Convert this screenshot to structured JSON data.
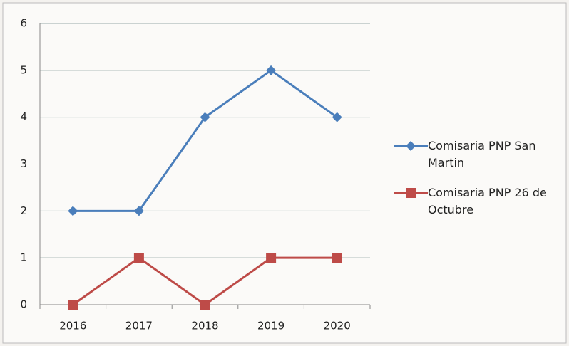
{
  "chart_data": {
    "type": "line",
    "categories": [
      "2016",
      "2017",
      "2018",
      "2019",
      "2020"
    ],
    "series": [
      {
        "name": "Comisaria PNP San Martin",
        "color": "#4a7ebb",
        "marker": "diamond",
        "values": [
          2,
          2,
          4,
          5,
          4
        ]
      },
      {
        "name": "Comisaria PNP 26 de Octubre",
        "color": "#be4b48",
        "marker": "square",
        "values": [
          0,
          1,
          0,
          1,
          1
        ]
      }
    ],
    "ylim": [
      0,
      6
    ],
    "yticks": [
      0,
      1,
      2,
      3,
      4,
      5,
      6
    ],
    "grid": true,
    "legend": "right"
  }
}
